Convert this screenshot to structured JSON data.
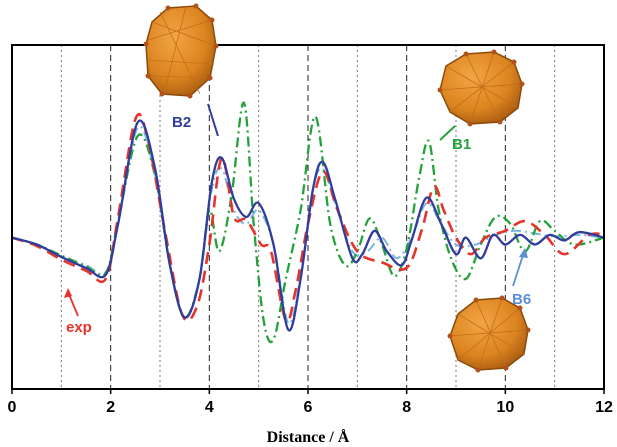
{
  "chart_data": {
    "type": "line",
    "xlabel": "Distance / Å",
    "ylabel": "",
    "xlim": [
      0,
      12
    ],
    "ylim": [
      -1.1,
      1.4
    ],
    "xticks": [
      0,
      2,
      4,
      6,
      8,
      10,
      12
    ],
    "dashed_gridlines": [
      2,
      4,
      6,
      8,
      10
    ],
    "dotted_gridlines": [
      1,
      3,
      5,
      7,
      9,
      11
    ],
    "legend": "none",
    "series": [
      {
        "name": "exp",
        "color": "#e8332b",
        "style": "dashed",
        "points": [
          [
            0,
            0
          ],
          [
            0.5,
            -0.06
          ],
          [
            1.0,
            -0.16
          ],
          [
            1.5,
            -0.24
          ],
          [
            1.9,
            -0.3
          ],
          [
            2.15,
            0.15
          ],
          [
            2.5,
            0.86
          ],
          [
            2.75,
            0.72
          ],
          [
            3.1,
            0.05
          ],
          [
            3.45,
            -0.56
          ],
          [
            3.75,
            -0.5
          ],
          [
            4.0,
            -0.05
          ],
          [
            4.25,
            0.58
          ],
          [
            4.5,
            0.15
          ],
          [
            4.75,
            0.13
          ],
          [
            5.05,
            -0.05
          ],
          [
            5.25,
            -0.1
          ],
          [
            5.55,
            -0.6
          ],
          [
            5.75,
            -0.38
          ],
          [
            6.0,
            0.1
          ],
          [
            6.3,
            0.48
          ],
          [
            6.6,
            0.2
          ],
          [
            7.0,
            -0.1
          ],
          [
            7.5,
            -0.18
          ],
          [
            8.0,
            -0.22
          ],
          [
            8.3,
            0.05
          ],
          [
            8.55,
            0.37
          ],
          [
            8.75,
            0.2
          ],
          [
            9.0,
            0
          ],
          [
            9.3,
            -0.12
          ],
          [
            9.6,
            0
          ],
          [
            10.0,
            0.05
          ],
          [
            10.4,
            0.12
          ],
          [
            10.8,
            0.02
          ],
          [
            11.2,
            -0.12
          ],
          [
            11.7,
            0.02
          ],
          [
            12.0,
            0.02
          ]
        ]
      },
      {
        "name": "B2",
        "color": "#2f3d9c",
        "style": "solid",
        "points": [
          [
            0,
            0
          ],
          [
            0.5,
            -0.05
          ],
          [
            1.0,
            -0.14
          ],
          [
            1.5,
            -0.22
          ],
          [
            1.9,
            -0.27
          ],
          [
            2.15,
            0.1
          ],
          [
            2.55,
            0.84
          ],
          [
            2.9,
            0.5
          ],
          [
            3.2,
            -0.2
          ],
          [
            3.5,
            -0.58
          ],
          [
            3.8,
            -0.3
          ],
          [
            4.05,
            0.4
          ],
          [
            4.25,
            0.58
          ],
          [
            4.5,
            0.28
          ],
          [
            4.75,
            0.15
          ],
          [
            5.0,
            0.25
          ],
          [
            5.3,
            -0.05
          ],
          [
            5.6,
            -0.67
          ],
          [
            5.85,
            -0.3
          ],
          [
            6.1,
            0.35
          ],
          [
            6.3,
            0.55
          ],
          [
            6.55,
            0.28
          ],
          [
            6.9,
            -0.15
          ],
          [
            7.1,
            -0.12
          ],
          [
            7.35,
            0.05
          ],
          [
            7.6,
            -0.1
          ],
          [
            7.9,
            -0.2
          ],
          [
            8.1,
            -0.02
          ],
          [
            8.4,
            0.29
          ],
          [
            8.7,
            0.1
          ],
          [
            9.0,
            -0.12
          ],
          [
            9.2,
            0
          ],
          [
            9.5,
            -0.15
          ],
          [
            9.75,
            0.02
          ],
          [
            10.0,
            -0.05
          ],
          [
            10.3,
            0.02
          ],
          [
            10.6,
            -0.05
          ],
          [
            10.9,
            0.02
          ],
          [
            11.2,
            -0.02
          ],
          [
            11.5,
            0.04
          ],
          [
            12,
            0
          ]
        ]
      },
      {
        "name": "B1",
        "color": "#23a23a",
        "style": "dash-dot",
        "points": [
          [
            0,
            0
          ],
          [
            0.5,
            -0.05
          ],
          [
            1.0,
            -0.13
          ],
          [
            1.5,
            -0.21
          ],
          [
            1.9,
            -0.26
          ],
          [
            2.15,
            0.12
          ],
          [
            2.55,
            0.74
          ],
          [
            2.9,
            0.45
          ],
          [
            3.2,
            -0.2
          ],
          [
            3.5,
            -0.58
          ],
          [
            3.8,
            -0.3
          ],
          [
            4.0,
            0.2
          ],
          [
            4.2,
            -0.1
          ],
          [
            4.45,
            0.3
          ],
          [
            4.7,
            0.98
          ],
          [
            4.9,
            0.1
          ],
          [
            5.1,
            -0.6
          ],
          [
            5.3,
            -0.74
          ],
          [
            5.55,
            -0.3
          ],
          [
            5.85,
            0.2
          ],
          [
            6.15,
            0.88
          ],
          [
            6.45,
            0.1
          ],
          [
            6.75,
            -0.2
          ],
          [
            7.0,
            -0.1
          ],
          [
            7.25,
            0.14
          ],
          [
            7.5,
            -0.05
          ],
          [
            7.75,
            -0.28
          ],
          [
            8.0,
            -0.08
          ],
          [
            8.25,
            0.43
          ],
          [
            8.45,
            0.7
          ],
          [
            8.65,
            0.2
          ],
          [
            8.9,
            -0.15
          ],
          [
            9.2,
            -0.3
          ],
          [
            9.5,
            -0.05
          ],
          [
            9.8,
            0.15
          ],
          [
            10.1,
            0.1
          ],
          [
            10.4,
            -0.1
          ],
          [
            10.7,
            0.12
          ],
          [
            11.0,
            0.05
          ],
          [
            11.4,
            -0.05
          ],
          [
            12,
            0
          ]
        ]
      },
      {
        "name": "B6",
        "color": "#7ab3e0",
        "style": "dash-dot",
        "points": [
          [
            0,
            0
          ],
          [
            0.5,
            -0.05
          ],
          [
            1.0,
            -0.13
          ],
          [
            1.5,
            -0.2
          ],
          [
            1.9,
            -0.25
          ],
          [
            2.15,
            0.1
          ],
          [
            2.55,
            0.8
          ],
          [
            2.9,
            0.45
          ],
          [
            3.2,
            -0.2
          ],
          [
            3.5,
            -0.58
          ],
          [
            3.8,
            -0.3
          ],
          [
            4.05,
            0.35
          ],
          [
            4.25,
            0.5
          ],
          [
            4.5,
            0.2
          ],
          [
            4.75,
            0.1
          ],
          [
            5.0,
            0.2
          ],
          [
            5.3,
            -0.05
          ],
          [
            5.6,
            -0.62
          ],
          [
            5.85,
            -0.28
          ],
          [
            6.1,
            0.35
          ],
          [
            6.3,
            0.5
          ],
          [
            6.55,
            0.25
          ],
          [
            6.9,
            -0.1
          ],
          [
            7.2,
            -0.1
          ],
          [
            7.5,
            0
          ],
          [
            7.8,
            -0.15
          ],
          [
            8.1,
            0
          ],
          [
            8.4,
            0.25
          ],
          [
            8.7,
            0.1
          ],
          [
            9.0,
            -0.05
          ],
          [
            9.4,
            -0.05
          ],
          [
            9.8,
            0.02
          ],
          [
            10.2,
            0.05
          ],
          [
            10.6,
            0.03
          ],
          [
            11.0,
            0.01
          ],
          [
            11.5,
            0.02
          ],
          [
            12,
            0
          ]
        ]
      }
    ],
    "annotations": [
      {
        "label": "exp",
        "color": "#e8332b"
      },
      {
        "label": "B2",
        "color": "#2f3d9c"
      },
      {
        "label": "B1",
        "color": "#23a23a"
      },
      {
        "label": "B6",
        "color": "#5b8fd1"
      }
    ]
  }
}
